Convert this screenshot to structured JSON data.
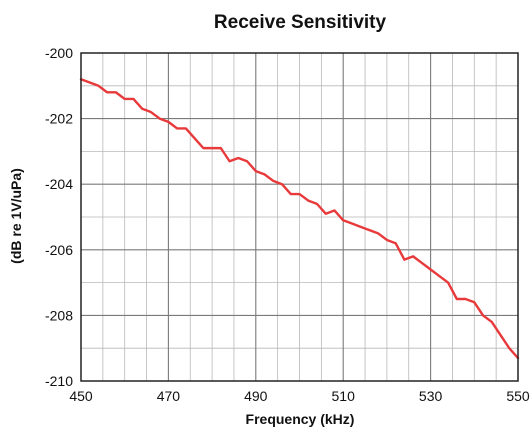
{
  "chart_data": {
    "type": "line",
    "title": "Receive Sensitivity",
    "xlabel": "Frequency (kHz)",
    "ylabel": "(dB re 1V/uPa)",
    "xlim": [
      450,
      550
    ],
    "ylim": [
      -210,
      -200
    ],
    "xticks": [
      450,
      470,
      490,
      510,
      530,
      550
    ],
    "xtick_labels": [
      "450",
      "470",
      "490",
      "510",
      "530",
      "550"
    ],
    "yticks": [
      -200,
      -202,
      -204,
      -206,
      -208,
      -210
    ],
    "ytick_labels": [
      "-200",
      "-202",
      "-204",
      "-206",
      "-208",
      "-210"
    ],
    "grid": true,
    "line_color": "#e8393b",
    "grid_color": "#b8b8b8",
    "major_grid_color": "#7a7a7a",
    "series": [
      {
        "x": [
          450,
          452,
          454,
          456,
          458,
          460,
          462,
          464,
          466,
          468,
          470,
          472,
          474,
          476,
          478,
          480,
          482,
          484,
          486,
          488,
          490,
          492,
          494,
          496,
          498,
          500,
          502,
          504,
          506,
          508,
          510,
          512,
          514,
          516,
          518,
          520,
          522,
          524,
          526,
          528,
          530,
          532,
          534,
          536,
          538,
          540,
          542,
          544,
          546,
          548,
          550
        ],
        "y": [
          -200.8,
          -200.9,
          -201.0,
          -201.2,
          -201.2,
          -201.4,
          -201.4,
          -201.7,
          -201.8,
          -202.0,
          -202.1,
          -202.3,
          -202.3,
          -202.6,
          -202.9,
          -202.9,
          -202.9,
          -203.3,
          -203.2,
          -203.3,
          -203.6,
          -203.7,
          -203.9,
          -204.0,
          -204.3,
          -204.3,
          -204.5,
          -204.6,
          -204.9,
          -204.8,
          -205.1,
          -205.2,
          -205.3,
          -205.4,
          -205.5,
          -205.7,
          -205.8,
          -206.3,
          -206.2,
          -206.4,
          -206.6,
          -206.8,
          -207.0,
          -207.5,
          -207.5,
          -207.6,
          -208.0,
          -208.2,
          -208.6,
          -209.0,
          -209.3
        ]
      }
    ]
  }
}
